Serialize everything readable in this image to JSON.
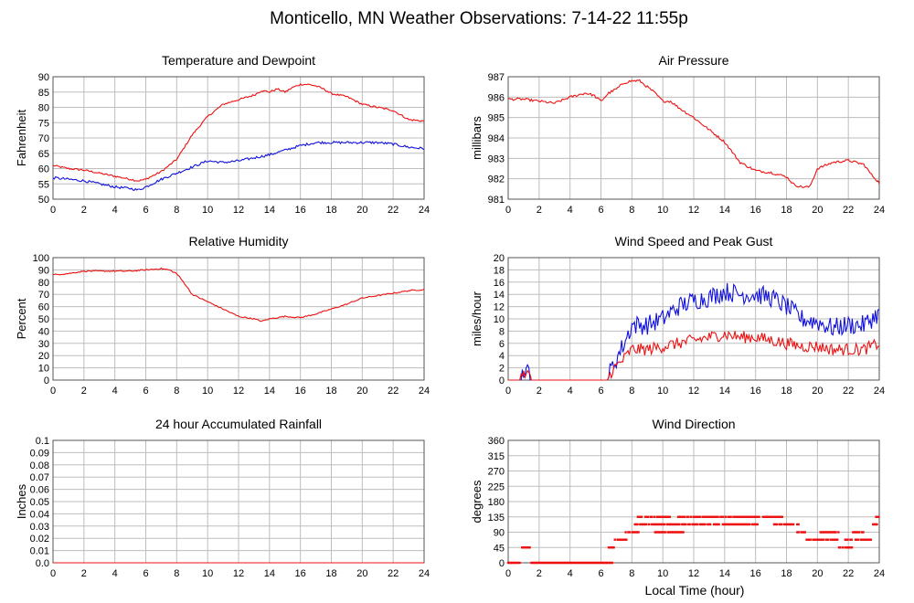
{
  "page": {
    "title": "Monticello, MN Weather Observations: 7-14-22 11:55p",
    "xlabel": "Local Time (hour)"
  },
  "colors": {
    "red": "#ee1111",
    "blue": "#1111dd",
    "grid": "#bdbdbd",
    "frame": "#555555"
  },
  "chart_data": [
    {
      "type": "line",
      "title": "Temperature and Dewpoint",
      "xlabel": "",
      "ylabel": "Fahrenheit",
      "xlim": [
        0,
        24
      ],
      "ylim": [
        50,
        90
      ],
      "xticks": [
        0,
        2,
        4,
        6,
        8,
        10,
        12,
        14,
        16,
        18,
        20,
        22,
        24
      ],
      "yticks": [
        50,
        55,
        60,
        65,
        70,
        75,
        80,
        85,
        90
      ],
      "grid": true,
      "series": [
        {
          "color": "red",
          "noise": 0.3,
          "x": [
            0,
            1,
            2,
            3,
            4,
            5,
            5.5,
            6,
            7,
            8,
            8.5,
            9,
            9.5,
            10,
            10.5,
            11,
            12,
            13,
            13.5,
            14,
            14.5,
            15,
            15.5,
            16,
            16.5,
            17,
            17.5,
            18,
            19,
            20,
            21,
            22,
            23,
            24
          ],
          "y": [
            61,
            60,
            59.5,
            58.5,
            57.5,
            56.5,
            56,
            56.5,
            59,
            63,
            67,
            71,
            74,
            77,
            79,
            81,
            82.5,
            84,
            85.5,
            85,
            86,
            85,
            86.5,
            87.5,
            87.5,
            87,
            86,
            84.5,
            83.5,
            81,
            80,
            79,
            76,
            75.5
          ]
        },
        {
          "color": "blue",
          "noise": 0.4,
          "x": [
            0,
            1,
            2,
            3,
            4,
            5,
            5.5,
            6,
            7,
            8,
            9,
            10,
            11,
            12,
            13,
            14,
            15,
            16,
            17,
            18,
            19,
            20,
            21,
            22,
            23,
            24
          ],
          "y": [
            57,
            56.5,
            56,
            55,
            54,
            53.5,
            53,
            54,
            56.5,
            58.5,
            60.5,
            62.5,
            62,
            62.5,
            63.5,
            64.5,
            66,
            67.5,
            68.5,
            68.5,
            68.5,
            68.5,
            68.5,
            68,
            67,
            66.5
          ]
        }
      ]
    },
    {
      "type": "line",
      "title": "Air Pressure",
      "xlabel": "",
      "ylabel": "millibars",
      "xlim": [
        0,
        24
      ],
      "ylim": [
        981,
        987
      ],
      "xticks": [
        0,
        2,
        4,
        6,
        8,
        10,
        12,
        14,
        16,
        18,
        20,
        22,
        24
      ],
      "yticks": [
        981,
        982,
        983,
        984,
        985,
        986,
        987
      ],
      "grid": true,
      "series": [
        {
          "color": "red",
          "noise": 0.06,
          "x": [
            0,
            1,
            2,
            3,
            4,
            5,
            5.5,
            6,
            6.5,
            7,
            7.5,
            8,
            8.5,
            9,
            9.5,
            10,
            10.5,
            11,
            12,
            13,
            14,
            14.5,
            15,
            16,
            17,
            18,
            18.5,
            19,
            19.5,
            20,
            21,
            22,
            22.5,
            23,
            23.5,
            24
          ],
          "y": [
            985.9,
            985.9,
            985.8,
            985.7,
            986.0,
            986.2,
            986.1,
            985.8,
            986.2,
            986.4,
            986.7,
            986.8,
            986.8,
            986.5,
            986.2,
            985.8,
            985.8,
            985.5,
            985.0,
            984.4,
            983.8,
            983.3,
            982.8,
            982.4,
            982.3,
            982.1,
            981.7,
            981.6,
            981.6,
            982.5,
            982.8,
            982.9,
            982.8,
            982.7,
            982.2,
            981.8
          ]
        }
      ]
    },
    {
      "type": "line",
      "title": "Relative Humidity",
      "xlabel": "",
      "ylabel": "Percent",
      "xlim": [
        0,
        24
      ],
      "ylim": [
        0,
        100
      ],
      "xticks": [
        0,
        2,
        4,
        6,
        8,
        10,
        12,
        14,
        16,
        18,
        20,
        22,
        24
      ],
      "yticks": [
        0,
        10,
        20,
        30,
        40,
        50,
        60,
        70,
        80,
        90,
        100
      ],
      "grid": true,
      "series": [
        {
          "color": "red",
          "noise": 0.5,
          "x": [
            0,
            1,
            2,
            3,
            4,
            5,
            6,
            7,
            7.5,
            8,
            8.5,
            9,
            10,
            11,
            12,
            13,
            13.5,
            14,
            15,
            16,
            17,
            18,
            19,
            20,
            21,
            22,
            23,
            24
          ],
          "y": [
            86,
            87,
            89,
            89,
            89,
            89,
            90,
            91,
            90,
            87,
            79,
            70,
            64,
            58,
            52,
            50,
            48,
            50,
            52,
            51,
            54,
            58,
            62,
            67,
            69,
            71,
            73,
            74
          ]
        }
      ]
    },
    {
      "type": "line",
      "title": "Wind Speed and Peak Gust",
      "xlabel": "",
      "ylabel": "miles/hour",
      "xlim": [
        0,
        24
      ],
      "ylim": [
        0,
        20
      ],
      "xticks": [
        0,
        2,
        4,
        6,
        8,
        10,
        12,
        14,
        16,
        18,
        20,
        22,
        24
      ],
      "yticks": [
        0,
        2,
        4,
        6,
        8,
        10,
        12,
        14,
        16,
        18,
        20
      ],
      "grid": true,
      "series": [
        {
          "color": "blue",
          "noise": 1.6,
          "x": [
            0,
            0.8,
            1.0,
            1.1,
            1.3,
            1.5,
            6.4,
            6.7,
            7.5,
            8,
            9,
            10,
            11,
            12,
            13,
            14,
            15,
            16,
            17,
            18,
            19,
            20,
            21,
            22,
            23,
            24
          ],
          "y": [
            0,
            0,
            2,
            0,
            2,
            0,
            0,
            2,
            6,
            9,
            9,
            10,
            12,
            13,
            13.5,
            14.5,
            14,
            14,
            13.5,
            12,
            10,
            9.5,
            8.5,
            9,
            9,
            11
          ]
        },
        {
          "color": "red",
          "noise": 1.0,
          "x": [
            0,
            0.8,
            1.0,
            1.1,
            1.3,
            1.5,
            6.4,
            6.7,
            7.5,
            8,
            9,
            10,
            11,
            12,
            13,
            14,
            15,
            16,
            17,
            18,
            19,
            20,
            21,
            22,
            23,
            24
          ],
          "y": [
            0,
            0,
            1.5,
            0,
            1,
            0,
            0,
            1.5,
            3.5,
            5,
            5,
            5.5,
            6,
            6.5,
            7,
            7.5,
            7,
            7,
            6.5,
            6,
            5.5,
            5.5,
            5,
            5,
            5,
            6
          ]
        }
      ]
    },
    {
      "type": "bar",
      "title": "24 hour Accumulated Rainfall",
      "xlabel": "",
      "ylabel": "Inches",
      "xlim": [
        0,
        24
      ],
      "ylim": [
        0,
        0.1
      ],
      "xticks": [
        0,
        2,
        4,
        6,
        8,
        10,
        12,
        14,
        16,
        18,
        20,
        22,
        24
      ],
      "yticks": [
        0,
        0.01,
        0.02,
        0.03,
        0.04,
        0.05,
        0.06,
        0.07,
        0.08,
        0.09,
        0.1
      ],
      "yticklabels": [
        "0.0",
        "0.01",
        "0.02",
        "0.03",
        "0.04",
        "0.05",
        "0.06",
        "0.07",
        "0.08",
        "0.09",
        "0.1"
      ],
      "grid": true,
      "series": [
        {
          "color": "red",
          "x": [
            0,
            24
          ],
          "y": [
            0,
            0
          ]
        }
      ]
    },
    {
      "type": "scatter",
      "title": "Wind Direction",
      "xlabel": "Local Time (hour)",
      "ylabel": "degrees",
      "xlim": [
        0,
        24
      ],
      "ylim": [
        0,
        360
      ],
      "xticks": [
        0,
        2,
        4,
        6,
        8,
        10,
        12,
        14,
        16,
        18,
        20,
        22,
        24
      ],
      "yticks": [
        0,
        45,
        90,
        135,
        180,
        225,
        270,
        315,
        360
      ],
      "grid": true,
      "series": [
        {
          "color": "red",
          "segments": [
            {
              "x0": 0.0,
              "x1": 0.8,
              "y": 0
            },
            {
              "x0": 0.9,
              "x1": 1.4,
              "y": 45
            },
            {
              "x0": 1.5,
              "x1": 6.8,
              "y": 0
            },
            {
              "x0": 6.5,
              "x1": 6.9,
              "y": 45
            },
            {
              "x0": 6.9,
              "x1": 7.7,
              "y": 68
            },
            {
              "x0": 7.6,
              "x1": 8.5,
              "y": 90
            },
            {
              "x0": 8.2,
              "x1": 10.5,
              "y": 113
            },
            {
              "x0": 8.3,
              "x1": 10.5,
              "y": 135
            },
            {
              "x0": 9.5,
              "x1": 11.4,
              "y": 90
            },
            {
              "x0": 10.5,
              "x1": 13.2,
              "y": 113
            },
            {
              "x0": 11.0,
              "x1": 17.8,
              "y": 135
            },
            {
              "x0": 13.3,
              "x1": 16.2,
              "y": 113
            },
            {
              "x0": 17.2,
              "x1": 18.8,
              "y": 113
            },
            {
              "x0": 18.7,
              "x1": 19.2,
              "y": 90
            },
            {
              "x0": 19.3,
              "x1": 21.3,
              "y": 68
            },
            {
              "x0": 20.2,
              "x1": 21.4,
              "y": 90
            },
            {
              "x0": 21.4,
              "x1": 22.3,
              "y": 45
            },
            {
              "x0": 21.8,
              "x1": 23.5,
              "y": 68
            },
            {
              "x0": 22.3,
              "x1": 23.0,
              "y": 90
            },
            {
              "x0": 23.6,
              "x1": 23.9,
              "y": 113
            },
            {
              "x0": 23.8,
              "x1": 24.0,
              "y": 135
            }
          ]
        }
      ]
    }
  ]
}
